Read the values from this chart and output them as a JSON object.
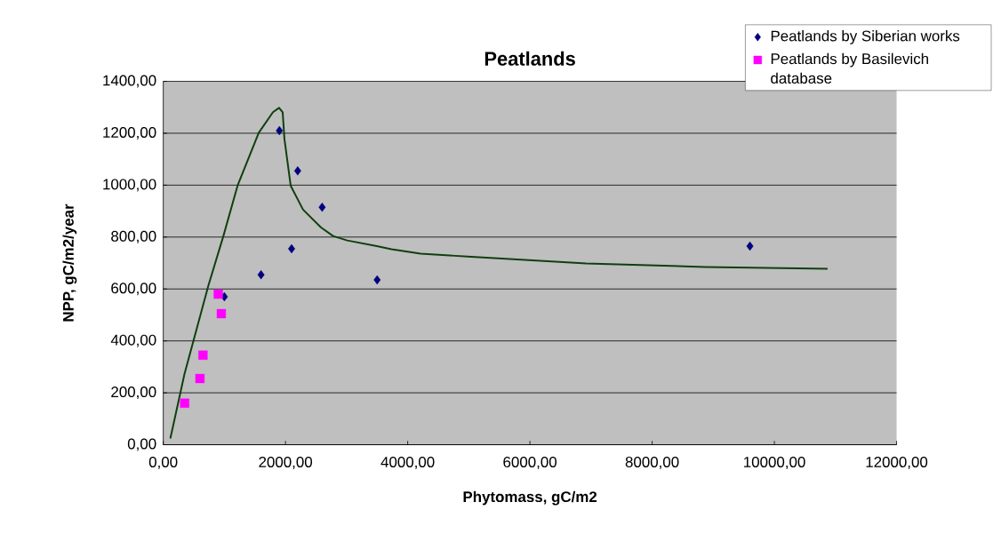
{
  "chart_data": {
    "type": "scatter",
    "title": "Peatlands",
    "xlabel": "Phytomass, gC/m2",
    "ylabel": "NPP, gC/m2/year",
    "xlim": [
      0,
      12000
    ],
    "ylim": [
      0,
      1400
    ],
    "xticks": [
      {
        "value": 0,
        "label": "0,00"
      },
      {
        "value": 2000,
        "label": "2000,00"
      },
      {
        "value": 4000,
        "label": "4000,00"
      },
      {
        "value": 6000,
        "label": "6000,00"
      },
      {
        "value": 8000,
        "label": "8000,00"
      },
      {
        "value": 10000,
        "label": "10000,00"
      },
      {
        "value": 12000,
        "label": "12000,00"
      }
    ],
    "yticks": [
      {
        "value": 0,
        "label": "0,00"
      },
      {
        "value": 200,
        "label": "200,00"
      },
      {
        "value": 400,
        "label": "400,00"
      },
      {
        "value": 600,
        "label": "600,00"
      },
      {
        "value": 800,
        "label": "800,00"
      },
      {
        "value": 1000,
        "label": "1000,00"
      },
      {
        "value": 1200,
        "label": "1200,00"
      },
      {
        "value": 1400,
        "label": "1400,00"
      }
    ],
    "grid": "y",
    "legend": "top right",
    "series": [
      {
        "name": "Peatlands by Siberian works",
        "type": "scatter",
        "marker": "diamond",
        "color": "#000080",
        "x": [
          1900,
          2200,
          2600,
          2100,
          1600,
          1000,
          3500,
          9600
        ],
        "values": [
          1210,
          1055,
          915,
          755,
          655,
          570,
          635,
          765
        ]
      },
      {
        "name": "Peatlands by Basilevich database",
        "type": "scatter",
        "marker": "square",
        "color": "#ff00ff",
        "x": [
          900,
          950,
          650,
          600,
          350
        ],
        "values": [
          580,
          505,
          345,
          255,
          160
        ]
      },
      {
        "type": "line",
        "marker": "none",
        "line_style": "solid",
        "color": "#0f3f0f",
        "x": [
          116,
          347,
          738,
          984,
          1216,
          1563,
          1795,
          1896,
          1954,
          1983,
          2085,
          2287,
          2577,
          2779,
          3011,
          3496,
          3735,
          4213,
          4980,
          6920,
          8859,
          10871
        ],
        "values": [
          24,
          272,
          613,
          804,
          998,
          1202,
          1281,
          1298,
          1281,
          1178,
          998,
          906,
          838,
          804,
          787,
          765,
          753,
          736,
          725,
          698,
          685,
          678
        ]
      }
    ]
  }
}
